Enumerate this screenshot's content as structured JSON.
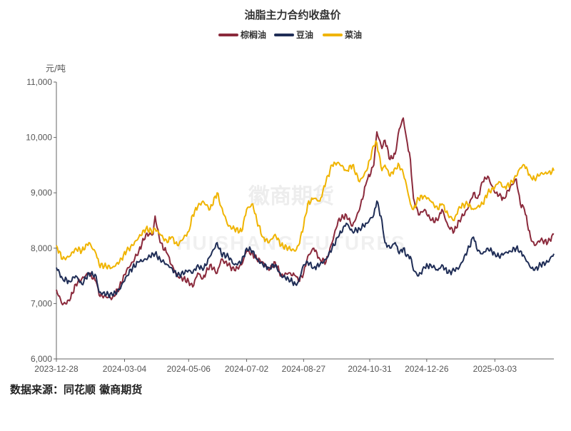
{
  "chart_data": {
    "type": "line",
    "title": "油脂主力合约收盘价",
    "ylabel": "元/吨",
    "source": "数据来源：同花顺 徽商期货",
    "watermark": "徽商期货",
    "watermark_sub": "HUISHANG FUTURES",
    "ylim": [
      6000,
      11000
    ],
    "yticks": [
      6000,
      7000,
      8000,
      9000,
      10000,
      11000
    ],
    "ytick_labels": [
      "6,000",
      "7,000",
      "8,000",
      "9,000",
      "10,000",
      "11,000"
    ],
    "xlim": [
      "2023-12-28",
      "2025-04-30"
    ],
    "xticks": [
      "2023-12-28",
      "2024-03-04",
      "2024-05-06",
      "2024-07-02",
      "2024-08-27",
      "2024-10-31",
      "2024-12-26",
      "2025-03-03"
    ],
    "grid": false,
    "legend_position": "top-center",
    "series": [
      {
        "name": "棕榈油",
        "color": "#8B2A3C",
        "points": [
          [
            "2023-12-28",
            7250
          ],
          [
            "2024-01-03",
            6980
          ],
          [
            "2024-01-10",
            7050
          ],
          [
            "2024-01-16",
            7350
          ],
          [
            "2024-01-22",
            7450
          ],
          [
            "2024-01-29",
            7550
          ],
          [
            "2024-02-05",
            7400
          ],
          [
            "2024-02-08",
            7150
          ],
          [
            "2024-02-21",
            7100
          ],
          [
            "2024-02-28",
            7300
          ],
          [
            "2024-03-06",
            7600
          ],
          [
            "2024-03-12",
            7750
          ],
          [
            "2024-03-18",
            7950
          ],
          [
            "2024-03-25",
            8250
          ],
          [
            "2024-04-01",
            8250
          ],
          [
            "2024-04-03",
            8580
          ],
          [
            "2024-04-08",
            8100
          ],
          [
            "2024-04-15",
            7900
          ],
          [
            "2024-04-19",
            7700
          ],
          [
            "2024-04-25",
            7500
          ],
          [
            "2024-05-06",
            7400
          ],
          [
            "2024-05-10",
            7300
          ],
          [
            "2024-05-15",
            7550
          ],
          [
            "2024-05-20",
            7450
          ],
          [
            "2024-05-27",
            7700
          ],
          [
            "2024-06-03",
            7550
          ],
          [
            "2024-06-07",
            7800
          ],
          [
            "2024-06-14",
            7700
          ],
          [
            "2024-06-20",
            7600
          ],
          [
            "2024-06-27",
            7700
          ],
          [
            "2024-07-02",
            7950
          ],
          [
            "2024-07-08",
            7900
          ],
          [
            "2024-07-12",
            7800
          ],
          [
            "2024-07-18",
            7750
          ],
          [
            "2024-07-24",
            7600
          ],
          [
            "2024-07-30",
            7750
          ],
          [
            "2024-08-05",
            7500
          ],
          [
            "2024-08-12",
            7550
          ],
          [
            "2024-08-19",
            7500
          ],
          [
            "2024-08-22",
            7400
          ],
          [
            "2024-08-27",
            7550
          ],
          [
            "2024-08-31",
            7850
          ],
          [
            "2024-09-06",
            8000
          ],
          [
            "2024-09-12",
            7800
          ],
          [
            "2024-09-18",
            7750
          ],
          [
            "2024-09-24",
            8100
          ],
          [
            "2024-09-30",
            8500
          ],
          [
            "2024-10-08",
            8600
          ],
          [
            "2024-10-14",
            8400
          ],
          [
            "2024-10-21",
            8700
          ],
          [
            "2024-10-28",
            9200
          ],
          [
            "2024-11-04",
            9500
          ],
          [
            "2024-11-07",
            10100
          ],
          [
            "2024-11-12",
            9800
          ],
          [
            "2024-11-15",
            9950
          ],
          [
            "2024-11-20",
            9600
          ],
          [
            "2024-11-25",
            9700
          ],
          [
            "2024-11-29",
            10150
          ],
          [
            "2024-12-03",
            10350
          ],
          [
            "2024-12-06",
            10000
          ],
          [
            "2024-12-10",
            9600
          ],
          [
            "2024-12-13",
            8900
          ],
          [
            "2024-12-18",
            8600
          ],
          [
            "2024-12-24",
            8700
          ],
          [
            "2024-12-30",
            8500
          ],
          [
            "2025-01-06",
            8500
          ],
          [
            "2025-01-10",
            8700
          ],
          [
            "2025-01-16",
            8400
          ],
          [
            "2025-01-22",
            8300
          ],
          [
            "2025-01-27",
            8500
          ],
          [
            "2025-02-04",
            8700
          ],
          [
            "2025-02-10",
            9000
          ],
          [
            "2025-02-14",
            8900
          ],
          [
            "2025-02-19",
            9200
          ],
          [
            "2025-02-24",
            9300
          ],
          [
            "2025-03-03",
            9000
          ],
          [
            "2025-03-07",
            8950
          ],
          [
            "2025-03-12",
            8900
          ],
          [
            "2025-03-18",
            9100
          ],
          [
            "2025-03-24",
            9250
          ],
          [
            "2025-03-28",
            8800
          ],
          [
            "2025-04-01",
            8700
          ],
          [
            "2025-04-07",
            8200
          ],
          [
            "2025-04-11",
            8050
          ],
          [
            "2025-04-17",
            8150
          ],
          [
            "2025-04-24",
            8100
          ],
          [
            "2025-04-30",
            8250
          ]
        ]
      },
      {
        "name": "豆油",
        "color": "#1F2D56",
        "points": [
          [
            "2023-12-28",
            7650
          ],
          [
            "2024-01-03",
            7450
          ],
          [
            "2024-01-10",
            7400
          ],
          [
            "2024-01-16",
            7500
          ],
          [
            "2024-01-22",
            7350
          ],
          [
            "2024-01-29",
            7550
          ],
          [
            "2024-02-05",
            7500
          ],
          [
            "2024-02-08",
            7200
          ],
          [
            "2024-02-21",
            7150
          ],
          [
            "2024-02-28",
            7250
          ],
          [
            "2024-03-06",
            7500
          ],
          [
            "2024-03-12",
            7650
          ],
          [
            "2024-03-18",
            7750
          ],
          [
            "2024-03-25",
            7800
          ],
          [
            "2024-04-01",
            7900
          ],
          [
            "2024-04-03",
            7900
          ],
          [
            "2024-04-08",
            7800
          ],
          [
            "2024-04-15",
            7700
          ],
          [
            "2024-04-19",
            7650
          ],
          [
            "2024-04-25",
            7500
          ],
          [
            "2024-05-06",
            7600
          ],
          [
            "2024-05-10",
            7550
          ],
          [
            "2024-05-15",
            7700
          ],
          [
            "2024-05-20",
            7600
          ],
          [
            "2024-05-27",
            7850
          ],
          [
            "2024-06-03",
            8100
          ],
          [
            "2024-06-07",
            7900
          ],
          [
            "2024-06-14",
            7850
          ],
          [
            "2024-06-20",
            7700
          ],
          [
            "2024-06-27",
            7750
          ],
          [
            "2024-07-02",
            8000
          ],
          [
            "2024-07-08",
            7950
          ],
          [
            "2024-07-12",
            7800
          ],
          [
            "2024-07-18",
            7700
          ],
          [
            "2024-07-24",
            7650
          ],
          [
            "2024-07-30",
            7700
          ],
          [
            "2024-08-05",
            7500
          ],
          [
            "2024-08-12",
            7450
          ],
          [
            "2024-08-19",
            7350
          ],
          [
            "2024-08-22",
            7400
          ],
          [
            "2024-08-27",
            7700
          ],
          [
            "2024-08-31",
            7750
          ],
          [
            "2024-09-06",
            7650
          ],
          [
            "2024-09-12",
            7700
          ],
          [
            "2024-09-18",
            7800
          ],
          [
            "2024-09-24",
            8000
          ],
          [
            "2024-09-30",
            8200
          ],
          [
            "2024-10-08",
            8450
          ],
          [
            "2024-10-14",
            8300
          ],
          [
            "2024-10-21",
            8350
          ],
          [
            "2024-10-28",
            8450
          ],
          [
            "2024-11-04",
            8600
          ],
          [
            "2024-11-07",
            8850
          ],
          [
            "2024-11-12",
            8500
          ],
          [
            "2024-11-15",
            8100
          ],
          [
            "2024-11-20",
            8000
          ],
          [
            "2024-11-25",
            8100
          ],
          [
            "2024-11-29",
            7900
          ],
          [
            "2024-12-03",
            8000
          ],
          [
            "2024-12-06",
            7850
          ],
          [
            "2024-12-10",
            7850
          ],
          [
            "2024-12-13",
            7600
          ],
          [
            "2024-12-18",
            7500
          ],
          [
            "2024-12-24",
            7650
          ],
          [
            "2024-12-30",
            7700
          ],
          [
            "2025-01-06",
            7600
          ],
          [
            "2025-01-10",
            7700
          ],
          [
            "2025-01-16",
            7550
          ],
          [
            "2025-01-22",
            7600
          ],
          [
            "2025-01-27",
            7650
          ],
          [
            "2025-02-04",
            7950
          ],
          [
            "2025-02-10",
            8200
          ],
          [
            "2025-02-14",
            7950
          ],
          [
            "2025-02-19",
            7900
          ],
          [
            "2025-02-24",
            8000
          ],
          [
            "2025-03-03",
            7900
          ],
          [
            "2025-03-07",
            7850
          ],
          [
            "2025-03-12",
            7900
          ],
          [
            "2025-03-18",
            7950
          ],
          [
            "2025-03-24",
            8000
          ],
          [
            "2025-03-28",
            7950
          ],
          [
            "2025-04-01",
            7850
          ],
          [
            "2025-04-07",
            7650
          ],
          [
            "2025-04-11",
            7600
          ],
          [
            "2025-04-17",
            7700
          ],
          [
            "2025-04-24",
            7750
          ],
          [
            "2025-04-30",
            7900
          ]
        ]
      },
      {
        "name": "菜油",
        "color": "#F0B400",
        "points": [
          [
            "2023-12-28",
            8050
          ],
          [
            "2024-01-03",
            7800
          ],
          [
            "2024-01-10",
            7850
          ],
          [
            "2024-01-16",
            8000
          ],
          [
            "2024-01-22",
            7950
          ],
          [
            "2024-01-29",
            8100
          ],
          [
            "2024-02-05",
            7900
          ],
          [
            "2024-02-08",
            7700
          ],
          [
            "2024-02-21",
            7650
          ],
          [
            "2024-02-28",
            7750
          ],
          [
            "2024-03-06",
            7950
          ],
          [
            "2024-03-12",
            8050
          ],
          [
            "2024-03-18",
            8200
          ],
          [
            "2024-03-25",
            8350
          ],
          [
            "2024-04-01",
            8300
          ],
          [
            "2024-04-03",
            8350
          ],
          [
            "2024-04-08",
            8250
          ],
          [
            "2024-04-15",
            8100
          ],
          [
            "2024-04-19",
            8200
          ],
          [
            "2024-04-25",
            8050
          ],
          [
            "2024-05-06",
            8300
          ],
          [
            "2024-05-10",
            8600
          ],
          [
            "2024-05-15",
            8750
          ],
          [
            "2024-05-20",
            8850
          ],
          [
            "2024-05-27",
            8700
          ],
          [
            "2024-06-03",
            9000
          ],
          [
            "2024-06-07",
            8750
          ],
          [
            "2024-06-14",
            8400
          ],
          [
            "2024-06-20",
            8350
          ],
          [
            "2024-06-27",
            8300
          ],
          [
            "2024-07-02",
            8700
          ],
          [
            "2024-07-08",
            8800
          ],
          [
            "2024-07-12",
            8500
          ],
          [
            "2024-07-18",
            8200
          ],
          [
            "2024-07-24",
            8100
          ],
          [
            "2024-07-30",
            8250
          ],
          [
            "2024-08-05",
            8050
          ],
          [
            "2024-08-12",
            8000
          ],
          [
            "2024-08-19",
            7950
          ],
          [
            "2024-08-22",
            8050
          ],
          [
            "2024-08-27",
            8400
          ],
          [
            "2024-08-31",
            8800
          ],
          [
            "2024-09-06",
            8900
          ],
          [
            "2024-09-12",
            8850
          ],
          [
            "2024-09-18",
            9200
          ],
          [
            "2024-09-24",
            9500
          ],
          [
            "2024-09-30",
            9550
          ],
          [
            "2024-10-08",
            9400
          ],
          [
            "2024-10-14",
            9500
          ],
          [
            "2024-10-21",
            9200
          ],
          [
            "2024-10-28",
            9400
          ],
          [
            "2024-11-04",
            9850
          ],
          [
            "2024-11-07",
            9900
          ],
          [
            "2024-11-12",
            9400
          ],
          [
            "2024-11-15",
            9500
          ],
          [
            "2024-11-20",
            9300
          ],
          [
            "2024-11-25",
            9450
          ],
          [
            "2024-11-29",
            9500
          ],
          [
            "2024-12-03",
            9350
          ],
          [
            "2024-12-06",
            9150
          ],
          [
            "2024-12-10",
            8800
          ],
          [
            "2024-12-13",
            8700
          ],
          [
            "2024-12-18",
            8900
          ],
          [
            "2024-12-24",
            8950
          ],
          [
            "2024-12-30",
            8850
          ],
          [
            "2025-01-06",
            8700
          ],
          [
            "2025-01-10",
            8800
          ],
          [
            "2025-01-16",
            8600
          ],
          [
            "2025-01-22",
            8500
          ],
          [
            "2025-01-27",
            8750
          ],
          [
            "2025-02-04",
            8800
          ],
          [
            "2025-02-10",
            8700
          ],
          [
            "2025-02-14",
            8750
          ],
          [
            "2025-02-19",
            8800
          ],
          [
            "2025-02-24",
            9000
          ],
          [
            "2025-03-03",
            9100
          ],
          [
            "2025-03-07",
            9200
          ],
          [
            "2025-03-12",
            9100
          ],
          [
            "2025-03-18",
            9150
          ],
          [
            "2025-03-24",
            9300
          ],
          [
            "2025-03-28",
            9450
          ],
          [
            "2025-04-01",
            9500
          ],
          [
            "2025-04-07",
            9300
          ],
          [
            "2025-04-11",
            9250
          ],
          [
            "2025-04-17",
            9350
          ],
          [
            "2025-04-24",
            9350
          ],
          [
            "2025-04-30",
            9400
          ]
        ]
      }
    ]
  }
}
